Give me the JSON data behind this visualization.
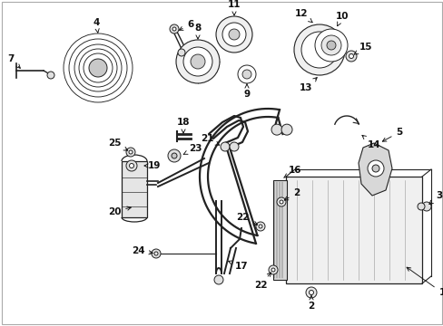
{
  "bg_color": "#ffffff",
  "line_color": "#222222",
  "text_color": "#111111",
  "figw": 4.89,
  "figh": 3.6,
  "dpi": 100
}
